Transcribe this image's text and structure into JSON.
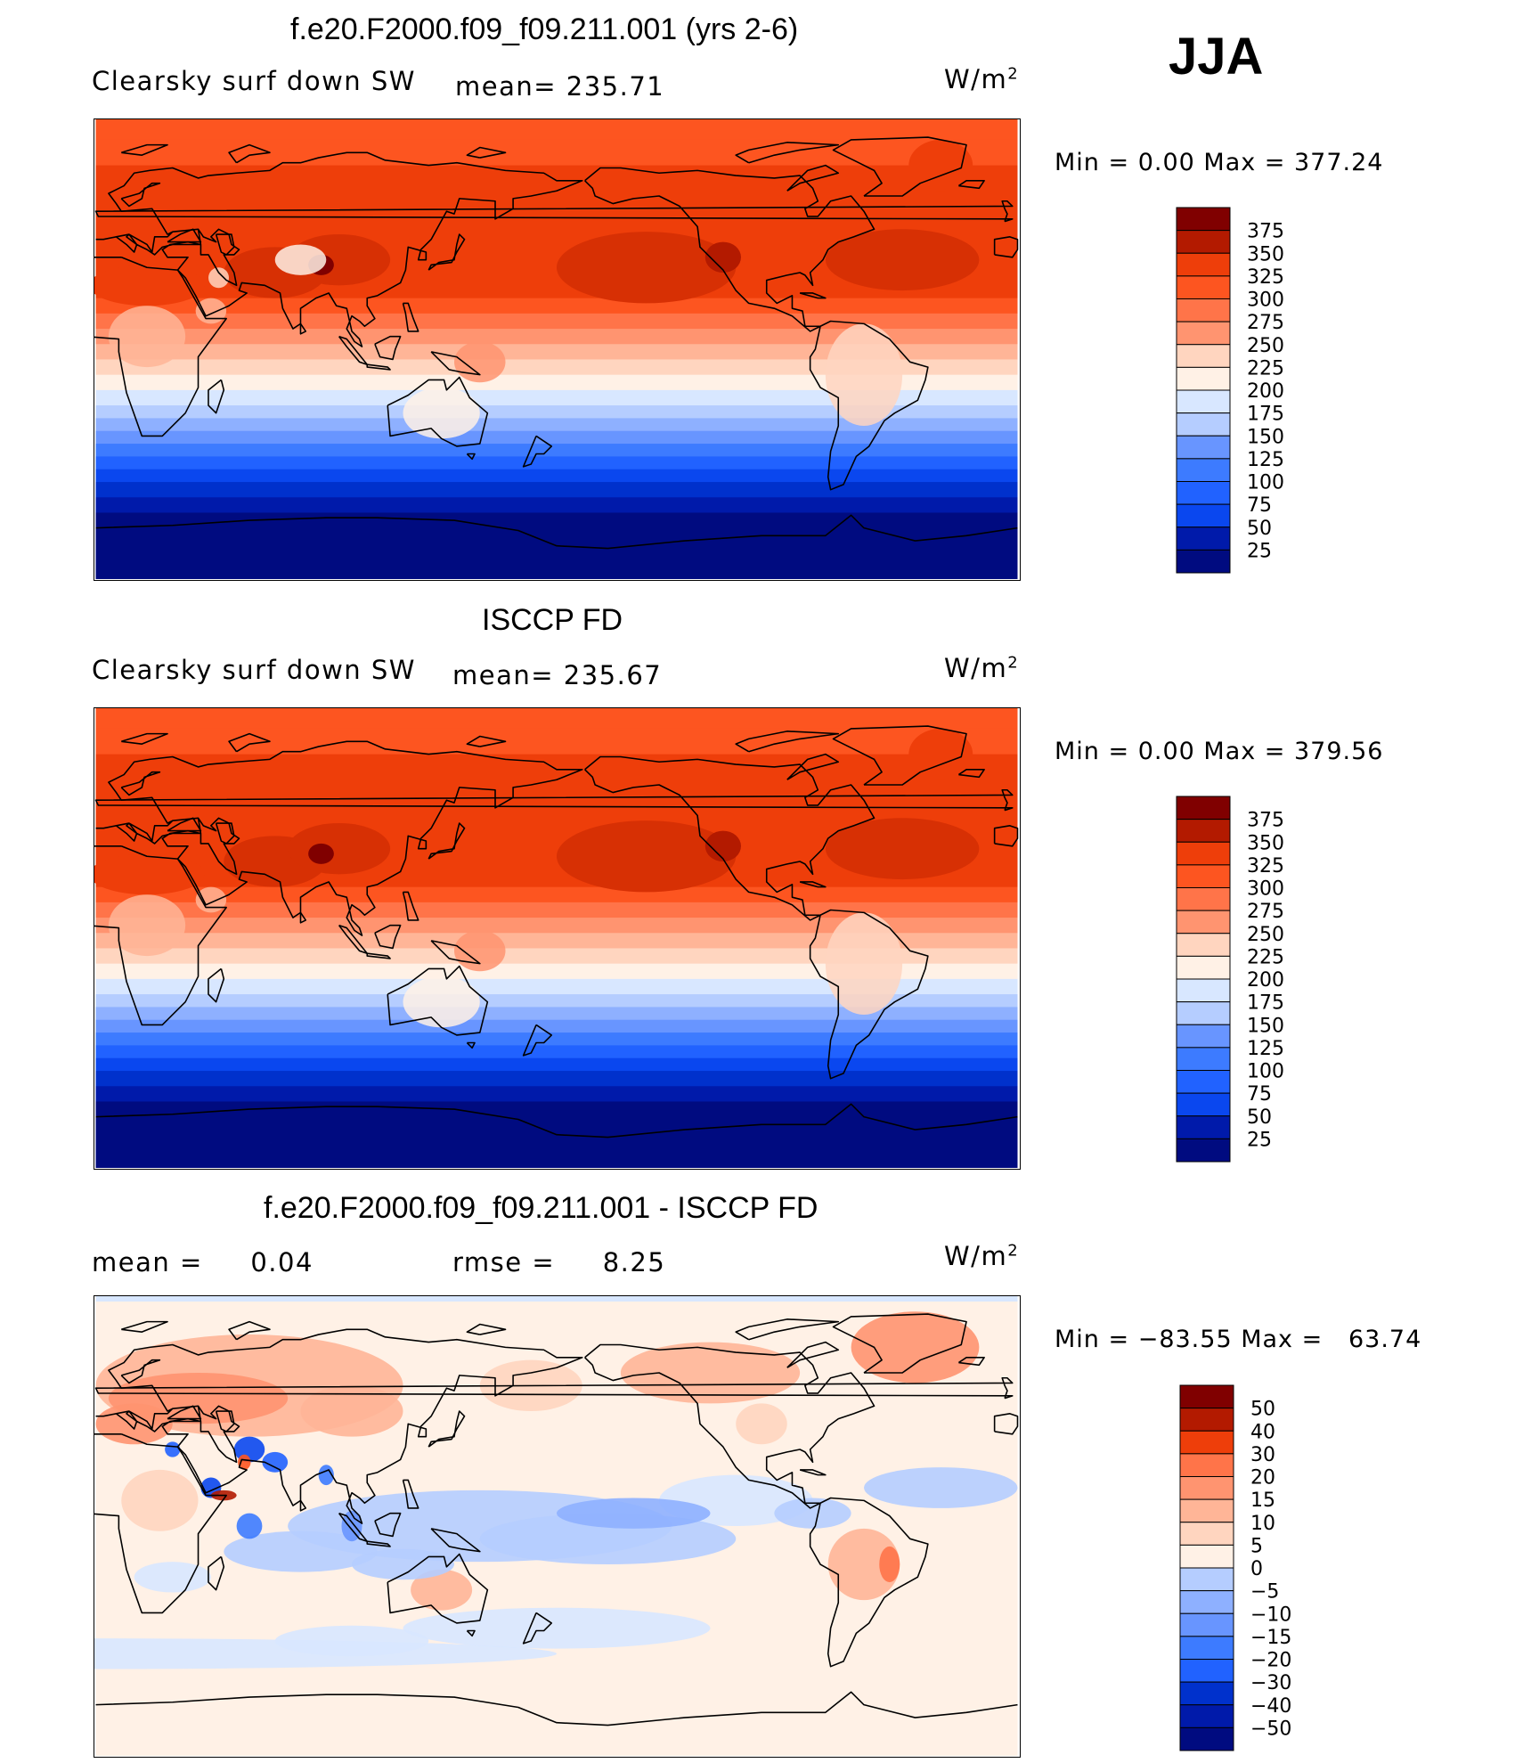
{
  "season": "JJA",
  "palettes": {
    "abs": [
      "#000b80",
      "#001aaa",
      "#0031cc",
      "#0a47ef",
      "#2162ff",
      "#3d7bff",
      "#6895ff",
      "#8eb0ff",
      "#b5cdff",
      "#d8e7ff",
      "#fff1e6",
      "#ffd5bf",
      "#ffb597",
      "#ff9470",
      "#ff7449",
      "#fd5520",
      "#ee3e0a",
      "#d73004",
      "#b31a00",
      "#800000"
    ],
    "diff": [
      "#000b80",
      "#001aaa",
      "#0031cc",
      "#0a47ef",
      "#2162ff",
      "#3d7bff",
      "#6895ff",
      "#8eb0ff",
      "#b5cdff",
      "#d8e7ff",
      "#fff1e6",
      "#ffd5bf",
      "#ffb597",
      "#ff9470",
      "#ff7449",
      "#fd5520",
      "#ee3e0a",
      "#b31a00",
      "#800000"
    ]
  },
  "panels": [
    {
      "title": "f.e20.F2000.f09_f09.211.001 (yrs 2-6)",
      "left_label": "Clearsky surf down SW",
      "mid_label": "mean= 235.71",
      "units": "W/m",
      "units_sup": "2",
      "min_max": "Min =    0.00 Max = 377.24",
      "field": "model",
      "colorbar": {
        "palette": "abs",
        "levels": [
          "375",
          "350",
          "325",
          "300",
          "275",
          "250",
          "225",
          "200",
          "175",
          "150",
          "125",
          "100",
          "75",
          "50",
          "25"
        ]
      }
    },
    {
      "title": "ISCCP FD",
      "left_label": "Clearsky surf down SW",
      "mid_label": "mean= 235.67",
      "units": "W/m",
      "units_sup": "2",
      "min_max": "Min =    0.00 Max = 379.56",
      "field": "obs",
      "colorbar": {
        "palette": "abs",
        "levels": [
          "375",
          "350",
          "325",
          "300",
          "275",
          "250",
          "225",
          "200",
          "175",
          "150",
          "125",
          "100",
          "75",
          "50",
          "25"
        ]
      }
    },
    {
      "title": "f.e20.F2000.f09_f09.211.001 - ISCCP FD",
      "left_label": "mean =     0.04",
      "mid_label": "rmse =     8.25",
      "units": "W/m",
      "units_sup": "2",
      "min_max": "Min = −83.55 Max =   63.74",
      "field": "diff",
      "colorbar": {
        "palette": "diff",
        "levels": [
          "50",
          "40",
          "30",
          "20",
          "15",
          "10",
          "5",
          "0",
          "−5",
          "−10",
          "−15",
          "−20",
          "−30",
          "−40",
          "−50"
        ]
      }
    }
  ]
}
